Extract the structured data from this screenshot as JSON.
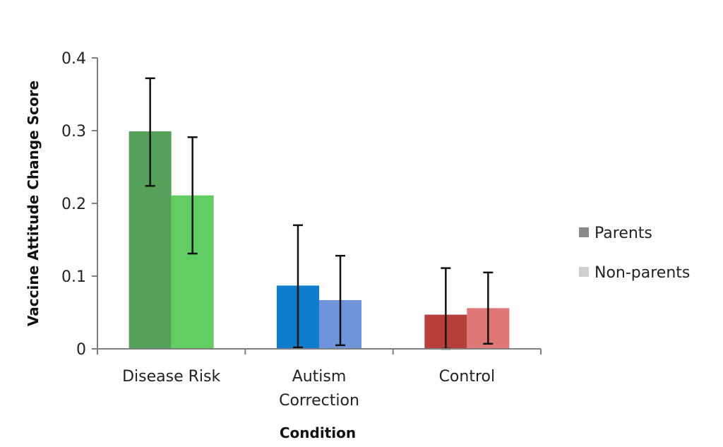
{
  "chart_data": {
    "type": "bar",
    "title": "",
    "xlabel": "Condition",
    "ylabel": "Vaccine Attitude Change Score",
    "ylim": [
      0,
      0.4
    ],
    "yticks": [
      {
        "value": 0,
        "label": "0"
      },
      {
        "value": 0.1,
        "label": "0.1"
      },
      {
        "value": 0.2,
        "label": "0.2"
      },
      {
        "value": 0.3,
        "label": "0.3"
      },
      {
        "value": 0.4,
        "label": "0.4"
      }
    ],
    "categories": [
      {
        "lines": [
          "Disease Risk"
        ]
      },
      {
        "lines": [
          "Autism",
          "Correction"
        ]
      },
      {
        "lines": [
          "Control"
        ]
      }
    ],
    "series": [
      {
        "name": "Parents",
        "legend_color": "#8a8a8a",
        "values": [
          0.299,
          0.087,
          0.047
        ],
        "err_low": [
          0.224,
          0.002,
          0.0
        ],
        "err_high": [
          0.372,
          0.17,
          0.111
        ],
        "colors": [
          "#56a15a",
          "#0f7ccd",
          "#b63f39"
        ]
      },
      {
        "name": "Non-parents",
        "legend_color": "#cfcfcf",
        "values": [
          0.211,
          0.067,
          0.056
        ],
        "err_low": [
          0.131,
          0.005,
          0.007
        ],
        "err_high": [
          0.291,
          0.128,
          0.105
        ],
        "colors": [
          "#62cd62",
          "#6f94dc",
          "#e07777"
        ]
      }
    ],
    "legend": "right"
  }
}
